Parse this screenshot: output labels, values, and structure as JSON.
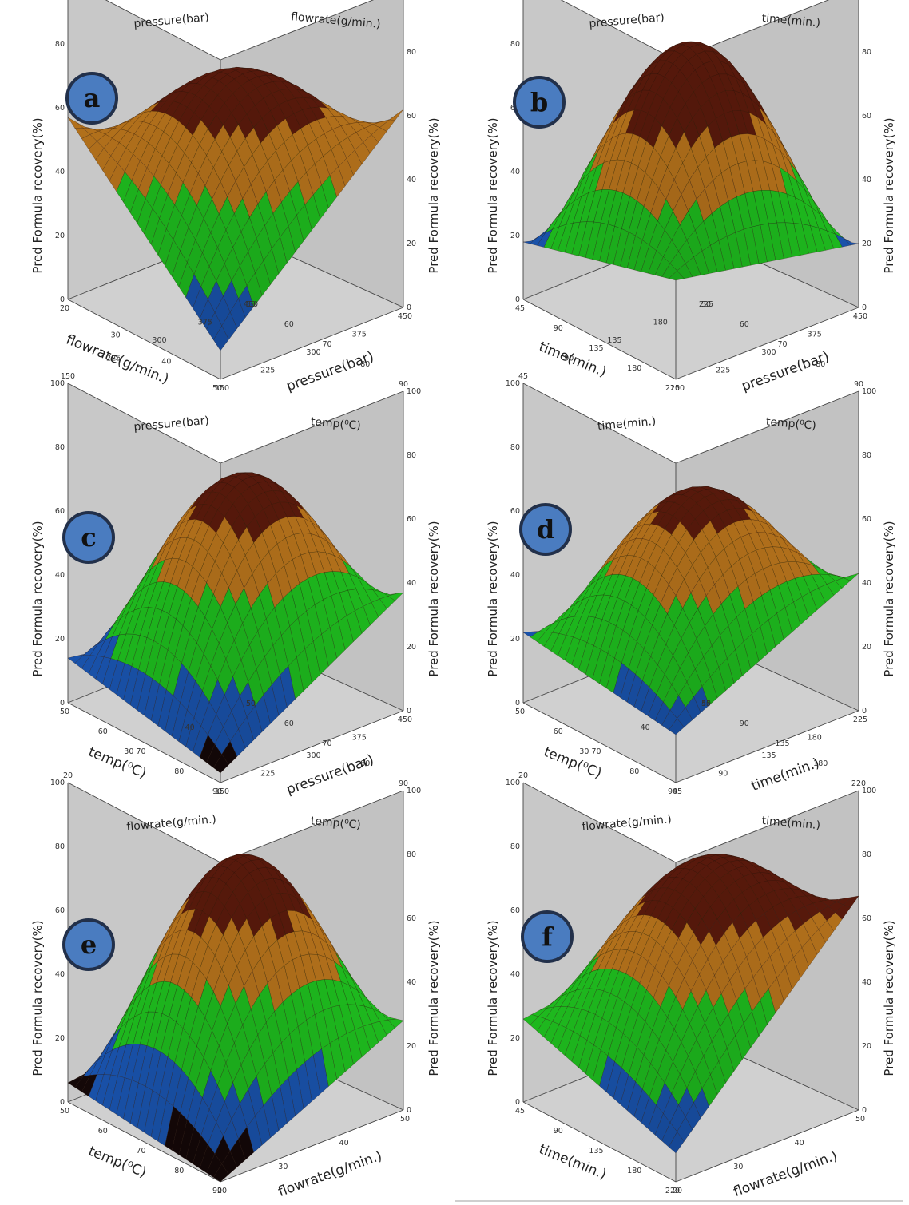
{
  "figure": {
    "z_label": "Pred Formula recovery(%)",
    "z_ticks": [
      "0",
      "20",
      "40",
      "60",
      "80",
      "100"
    ],
    "colors": {
      "bg": "#c8c8c8",
      "dark_red": "#5a1a0c",
      "orange": "#b8741c",
      "green": "#1fbf1f",
      "blue": "#1a55b0",
      "black": "#150808"
    }
  },
  "chart_data": [
    {
      "type": "surface",
      "panel": "a",
      "x_label": "pressure(bar)",
      "x_ticks": [
        "150",
        "225",
        "300",
        "375",
        "450"
      ],
      "y_label": "flowrate(g/min.)",
      "y_ticks": [
        "20",
        "30",
        "40",
        "50"
      ],
      "z_label": "Pred Formula recovery(%)",
      "zlim": [
        0,
        100
      ],
      "surface": {
        "corners": [
          9,
          57,
          62,
          2
        ],
        "center": 73
      }
    },
    {
      "type": "surface",
      "panel": "b",
      "x_label": "pressure(bar)",
      "x_ticks": [
        "150",
        "225",
        "300",
        "375",
        "450"
      ],
      "y_label": "time(min.)",
      "y_ticks": [
        "45",
        "90",
        "135",
        "180",
        "220"
      ],
      "z_label": "Pred Formula recovery(%)",
      "zlim": [
        0,
        100
      ],
      "surface": {
        "corners": [
          31,
          18,
          20,
          2
        ],
        "center": 82
      }
    },
    {
      "type": "surface",
      "panel": "c",
      "x_label": "pressure(bar)",
      "x_ticks": [
        "150",
        "225",
        "300",
        "375",
        "450"
      ],
      "y_label": "temp(⁰C)",
      "y_ticks": [
        "50",
        "60",
        "70",
        "80",
        "90"
      ],
      "z_label": "Pred Formula recovery(%)",
      "zlim": [
        0,
        100
      ],
      "surface": {
        "corners": [
          3,
          14,
          37,
          5
        ],
        "center": 72
      }
    },
    {
      "type": "surface",
      "panel": "d",
      "x_label": "time(min.)",
      "x_ticks": [
        "45",
        "90",
        "135",
        "180",
        "225"
      ],
      "y_label": "temp(⁰C)",
      "y_ticks": [
        "50",
        "60",
        "70",
        "80",
        "90"
      ],
      "z_label": "Pred Formula recovery(%)",
      "zlim": [
        0,
        100
      ],
      "surface": {
        "corners": [
          15,
          22,
          43,
          4
        ],
        "center": 68
      }
    },
    {
      "type": "surface",
      "panel": "e",
      "x_label": "flowrate(g/min.)",
      "x_ticks": [
        "20",
        "30",
        "40",
        "50"
      ],
      "y_label": "temp(⁰C)",
      "y_ticks": [
        "50",
        "60",
        "70",
        "80",
        "90"
      ],
      "z_label": "Pred Formula recovery(%)",
      "zlim": [
        0,
        100
      ],
      "surface": {
        "corners": [
          0,
          6,
          28,
          14
        ],
        "center": 77
      }
    },
    {
      "type": "surface",
      "panel": "f",
      "x_label": "flowrate(g/min.)",
      "x_ticks": [
        "20",
        "30",
        "40",
        "50"
      ],
      "y_label": "time(min.)",
      "y_ticks": [
        "45",
        "90",
        "135",
        "180",
        "220"
      ],
      "z_label": "Pred Formula recovery(%)",
      "zlim": [
        0,
        100
      ],
      "surface": {
        "corners": [
          9,
          26,
          67,
          34
        ],
        "center": 74
      }
    }
  ]
}
